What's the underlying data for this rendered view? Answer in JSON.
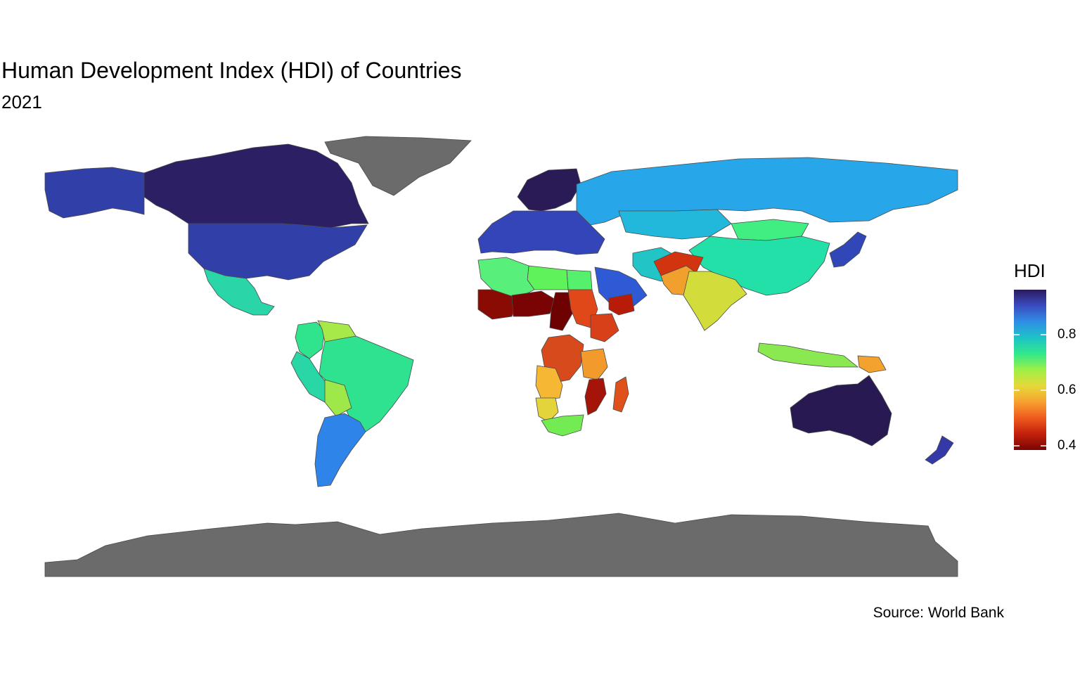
{
  "title": "Human Development Index (HDI) of Countries",
  "subtitle": "2021",
  "caption": "Source: World Bank",
  "legend": {
    "title": "HDI",
    "min": 0.385,
    "max": 0.962,
    "ticks": [
      {
        "value": 0.8,
        "label": "0.8"
      },
      {
        "value": 0.6,
        "label": "0.6"
      },
      {
        "value": 0.4,
        "label": "0.4"
      }
    ],
    "palette": "turbo (reversed)",
    "gradient_stops": [
      "#2b1a5e",
      "#3b4cc0",
      "#2f8ee6",
      "#1ec3c8",
      "#31e88b",
      "#9ef046",
      "#e5d93a",
      "#f8a12f",
      "#ef5a1e",
      "#c2200b",
      "#7a0403"
    ]
  },
  "colors": {
    "no_data": "#6b6b6b",
    "border": "#4a4a4a"
  },
  "chart_data": {
    "type": "choropleth",
    "variable": "HDI",
    "year": 2021,
    "regions": [
      {
        "name": "Canada",
        "hdi": 0.936,
        "color": "#2d1f63"
      },
      {
        "name": "United States",
        "hdi": 0.921,
        "color": "#313fa8"
      },
      {
        "name": "Alaska",
        "hdi": 0.921,
        "color": "#313fa8"
      },
      {
        "name": "Greenland",
        "hdi": null,
        "color": "#6b6b6b"
      },
      {
        "name": "Mexico",
        "hdi": 0.758,
        "color": "#2ad6a8"
      },
      {
        "name": "Brazil",
        "hdi": 0.754,
        "color": "#2fe28f"
      },
      {
        "name": "Argentina",
        "hdi": 0.842,
        "color": "#2f84ea"
      },
      {
        "name": "Peru",
        "hdi": 0.762,
        "color": "#29d6a6"
      },
      {
        "name": "Bolivia",
        "hdi": 0.692,
        "color": "#9ee84a"
      },
      {
        "name": "Venezuela",
        "hdi": 0.691,
        "color": "#a8e94a"
      },
      {
        "name": "Colombia",
        "hdi": 0.752,
        "color": "#2fe48c"
      },
      {
        "name": "Europe (West)",
        "hdi": 0.9,
        "color": "#3345b8"
      },
      {
        "name": "Scandinavia",
        "hdi": 0.95,
        "color": "#2a1a55"
      },
      {
        "name": "Russia",
        "hdi": 0.822,
        "color": "#28a6ea"
      },
      {
        "name": "Kazakhstan",
        "hdi": 0.811,
        "color": "#22b8dc"
      },
      {
        "name": "China",
        "hdi": 0.768,
        "color": "#22e0a8"
      },
      {
        "name": "Mongolia",
        "hdi": 0.739,
        "color": "#40ee82"
      },
      {
        "name": "India",
        "hdi": 0.633,
        "color": "#d2dd3c"
      },
      {
        "name": "Afghanistan",
        "hdi": 0.478,
        "color": "#d23410"
      },
      {
        "name": "Pakistan",
        "hdi": 0.544,
        "color": "#f2a02d"
      },
      {
        "name": "Iran",
        "hdi": 0.774,
        "color": "#22c4c6"
      },
      {
        "name": "Saudi Arabia",
        "hdi": 0.875,
        "color": "#2f5ad6"
      },
      {
        "name": "Yemen",
        "hdi": 0.455,
        "color": "#b81c08"
      },
      {
        "name": "Japan",
        "hdi": 0.925,
        "color": "#3147b8"
      },
      {
        "name": "Australia",
        "hdi": 0.951,
        "color": "#291952"
      },
      {
        "name": "New Zealand",
        "hdi": 0.937,
        "color": "#3339a6"
      },
      {
        "name": "Indonesia",
        "hdi": 0.705,
        "color": "#8ae851"
      },
      {
        "name": "Papua New Guinea",
        "hdi": 0.558,
        "color": "#f3a230"
      },
      {
        "name": "Algeria",
        "hdi": 0.745,
        "color": "#58f07a"
      },
      {
        "name": "Libya",
        "hdi": 0.718,
        "color": "#60f25a"
      },
      {
        "name": "Egypt",
        "hdi": 0.731,
        "color": "#55f06c"
      },
      {
        "name": "Mali",
        "hdi": 0.428,
        "color": "#8a0b04"
      },
      {
        "name": "Niger",
        "hdi": 0.4,
        "color": "#7a0403"
      },
      {
        "name": "Chad",
        "hdi": 0.394,
        "color": "#6e0202"
      },
      {
        "name": "Sudan",
        "hdi": 0.508,
        "color": "#e0481a"
      },
      {
        "name": "Ethiopia",
        "hdi": 0.498,
        "color": "#d8401a"
      },
      {
        "name": "DR Congo",
        "hdi": 0.479,
        "color": "#d64a1c"
      },
      {
        "name": "Angola",
        "hdi": 0.586,
        "color": "#f5b734"
      },
      {
        "name": "Namibia",
        "hdi": 0.615,
        "color": "#e2d43a"
      },
      {
        "name": "South Africa",
        "hdi": 0.713,
        "color": "#72ec52"
      },
      {
        "name": "Madagascar",
        "hdi": 0.501,
        "color": "#e0501a"
      },
      {
        "name": "Mozambique",
        "hdi": 0.446,
        "color": "#a51408"
      },
      {
        "name": "Tanzania",
        "hdi": 0.549,
        "color": "#f39a2c"
      },
      {
        "name": "Antarctica",
        "hdi": null,
        "color": "#6b6b6b"
      }
    ]
  }
}
